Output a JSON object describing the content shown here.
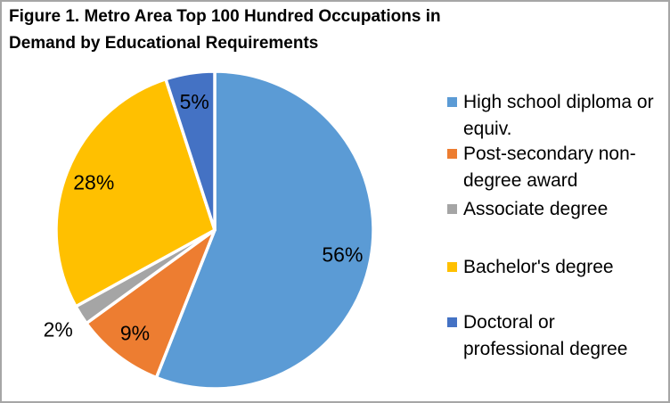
{
  "figure": {
    "border_color": "#A6A6A6",
    "background_color": "#FFFFFF",
    "text_color": "#000000",
    "separator_color": "#FFFFFF"
  },
  "title": {
    "text": "Figure 1. Metro Area Top 100 Hundred Occupations in Demand by Educational Requirements"
  },
  "chart_data": {
    "type": "pie",
    "title": "Figure 1. Metro Area Top 100 Hundred Occupations in Demand by Educational Requirements",
    "start_angle_deg": 0,
    "direction": "clockwise",
    "legend_position": "right",
    "data_label_format": "percent",
    "slices": [
      {
        "label": "High school diploma or equiv.",
        "value": 56,
        "data_label": "56%",
        "color": "#5B9BD5",
        "label_placement": "inside"
      },
      {
        "label": "Post-secondary non-degree award",
        "value": 9,
        "data_label": "9%",
        "color": "#ED7D31",
        "label_placement": "inside"
      },
      {
        "label": "Associate degree",
        "value": 2,
        "data_label": "2%",
        "color": "#A5A5A5",
        "label_placement": "outside"
      },
      {
        "label": "Bachelor's degree",
        "value": 28,
        "data_label": "28%",
        "color": "#FFC000",
        "label_placement": "inside"
      },
      {
        "label": "Doctoral or professional degree",
        "value": 5,
        "data_label": "5%",
        "color": "#4472C4",
        "label_placement": "inside"
      }
    ]
  },
  "legend": {
    "items": [
      {
        "label": "High school diploma or equiv.",
        "wrapped": "High school diploma or\nequiv.",
        "color": "#5B9BD5"
      },
      {
        "label": "Post-secondary non-degree award",
        "wrapped": "Post-secondary non-\ndegree award",
        "color": "#ED7D31"
      },
      {
        "label": "Associate degree",
        "wrapped": "Associate degree",
        "color": "#A5A5A5"
      },
      {
        "label": "Bachelor's degree",
        "wrapped": "Bachelor's degree",
        "color": "#FFC000"
      },
      {
        "label": "Doctoral or professional degree",
        "wrapped": "Doctoral or\nprofessional degree",
        "color": "#4472C4"
      }
    ]
  }
}
